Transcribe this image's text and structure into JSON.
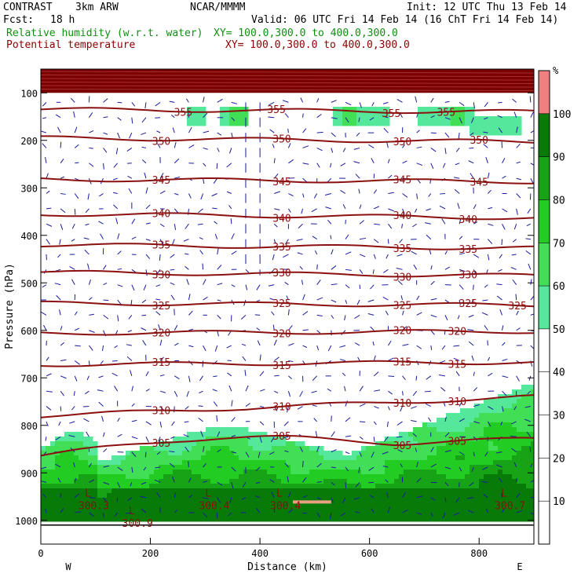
{
  "header": {
    "model": "CONTRAST",
    "resolution": "3km ARW",
    "center": "NCAR/MMMM",
    "init": "Init: 12 UTC Thu 13 Feb 14",
    "fcst_label": "Fcst:",
    "fcst_value": "18 h",
    "valid": "Valid: 06 UTC Fri 14 Feb 14 (16 ChT Fri 14 Feb 14)",
    "field1_name": "Relative humidity (w.r.t. water)",
    "field1_xy": "XY= 100.0,300.0 to 400.0,300.0",
    "field2_name": "Potential temperature",
    "field2_xy": "XY= 100.0,300.0 to 400.0,300.0",
    "colors": {
      "field1": "#0f8f0f",
      "field2": "#8b0000",
      "text": "#000000"
    }
  },
  "chart_data": {
    "type": "heatmap",
    "xlabel": "Distance (km)",
    "ylabel": "Pressure (hPa)",
    "xlim": [
      0,
      900
    ],
    "ylim": [
      1050,
      50
    ],
    "x_ticks": [
      0,
      200,
      400,
      600,
      800
    ],
    "y_ticks": [
      100,
      200,
      300,
      400,
      500,
      600,
      700,
      800,
      900,
      1000
    ],
    "x_end_labels": [
      "W",
      "E"
    ],
    "colorbar": {
      "unit": "%",
      "ticks": [
        10,
        20,
        30,
        40,
        50,
        60,
        70,
        80,
        90,
        100
      ],
      "colors": [
        {
          "from": 50,
          "to": 60,
          "color": "#55e89a"
        },
        {
          "from": 60,
          "to": 70,
          "color": "#40df55"
        },
        {
          "from": 70,
          "to": 80,
          "color": "#22cc22"
        },
        {
          "from": 80,
          "to": 90,
          "color": "#16a316"
        },
        {
          "from": 90,
          "to": 100,
          "color": "#087a08"
        },
        {
          "from": 100,
          "to": 110,
          "color": "#f08080"
        }
      ]
    },
    "theta_colour": "#8b1010",
    "wind_colour": "#1a1a9c",
    "theta_contours": [
      {
        "value": 355,
        "p0": 135,
        "p1": 140,
        "label_x": [
          260,
          430,
          640,
          740
        ]
      },
      {
        "value": 350,
        "p0": 195,
        "p1": 203,
        "label_x": [
          220,
          440,
          660,
          800
        ]
      },
      {
        "value": 345,
        "p0": 282,
        "p1": 287,
        "label_x": [
          220,
          440,
          660,
          800
        ]
      },
      {
        "value": 340,
        "p0": 355,
        "p1": 363,
        "label_x": [
          220,
          440,
          660,
          780
        ]
      },
      {
        "value": 335,
        "p0": 420,
        "p1": 427,
        "label_x": [
          220,
          440,
          660,
          780
        ]
      },
      {
        "value": 330,
        "p0": 478,
        "p1": 485,
        "label_x": [
          220,
          440,
          660,
          780
        ]
      },
      {
        "value": 325,
        "p0": 543,
        "p1": 547,
        "label_x": [
          220,
          440,
          660,
          780,
          870
        ]
      },
      {
        "value": 320,
        "p0": 606,
        "p1": 602,
        "label_x": [
          220,
          440,
          660,
          760
        ]
      },
      {
        "value": 315,
        "p0": 672,
        "p1": 667,
        "label_x": [
          220,
          440,
          660,
          760
        ]
      },
      {
        "value": 310,
        "p0": 780,
        "p1": 740,
        "label_x": [
          220,
          440,
          660,
          760
        ]
      },
      {
        "value": 305,
        "p0": 865,
        "p1": 828,
        "label_x": [
          220,
          440,
          660,
          760
        ]
      }
    ],
    "lows": [
      {
        "x": 80,
        "p": 963,
        "label": "L",
        "value": "300.3"
      },
      {
        "x": 160,
        "p": 1000,
        "label": "L",
        "value": "300.9"
      },
      {
        "x": 300,
        "p": 963,
        "label": "L",
        "value": "300.4"
      },
      {
        "x": 430,
        "p": 963,
        "label": "L",
        "value": "300.4"
      },
      {
        "x": 840,
        "p": 963,
        "label": "L",
        "value": "300.7"
      }
    ]
  }
}
